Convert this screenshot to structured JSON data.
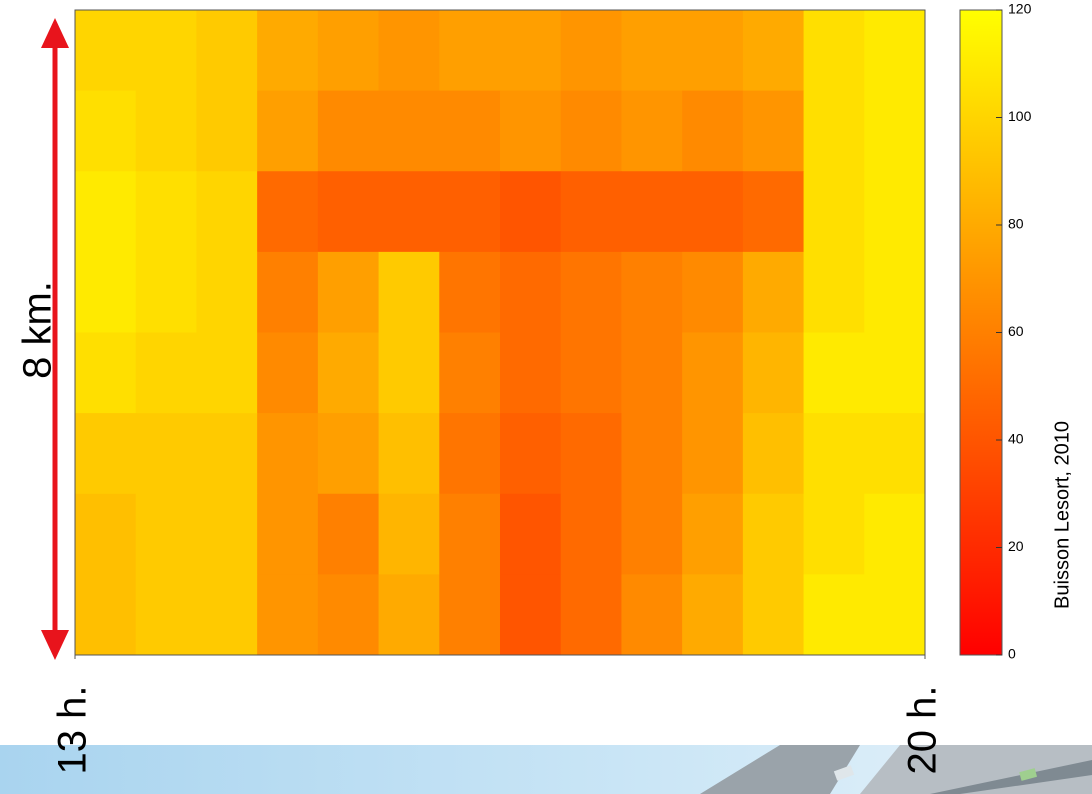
{
  "chart_data": {
    "type": "heatmap",
    "x": [
      13.25,
      13.75,
      14.25,
      14.75,
      15.25,
      15.75,
      16.25,
      16.75,
      17.25,
      17.75,
      18.25,
      18.75,
      19.25,
      19.75
    ],
    "z": [
      [
        100,
        100,
        95,
        80,
        75,
        70,
        75,
        75,
        70,
        75,
        75,
        80,
        105,
        110
      ],
      [
        105,
        100,
        95,
        75,
        65,
        65,
        65,
        70,
        65,
        70,
        65,
        70,
        105,
        110
      ],
      [
        110,
        105,
        100,
        50,
        45,
        45,
        45,
        40,
        45,
        45,
        45,
        50,
        105,
        110
      ],
      [
        110,
        105,
        100,
        60,
        75,
        95,
        55,
        50,
        55,
        60,
        65,
        80,
        105,
        110
      ],
      [
        105,
        100,
        100,
        65,
        80,
        95,
        60,
        50,
        55,
        60,
        70,
        85,
        110,
        110
      ],
      [
        95,
        95,
        95,
        70,
        75,
        90,
        55,
        45,
        50,
        60,
        70,
        90,
        105,
        105
      ],
      [
        90,
        95,
        95,
        70,
        60,
        85,
        60,
        40,
        50,
        60,
        75,
        95,
        105,
        110
      ],
      [
        90,
        95,
        95,
        70,
        65,
        80,
        60,
        40,
        50,
        65,
        80,
        95,
        110,
        110
      ]
    ],
    "xlim": [
      13,
      20
    ],
    "xticks": [
      {
        "value": 13,
        "label": "13 h."
      },
      {
        "value": 20,
        "label": "20 h."
      }
    ],
    "clim": [
      0,
      120
    ],
    "cticks": [
      0,
      20,
      40,
      60,
      80,
      100,
      120
    ],
    "colormap": "autumn",
    "distance_label": "8 km.",
    "arrow_color": "#e8141c",
    "source": "Buisson Lesort, 2010"
  }
}
